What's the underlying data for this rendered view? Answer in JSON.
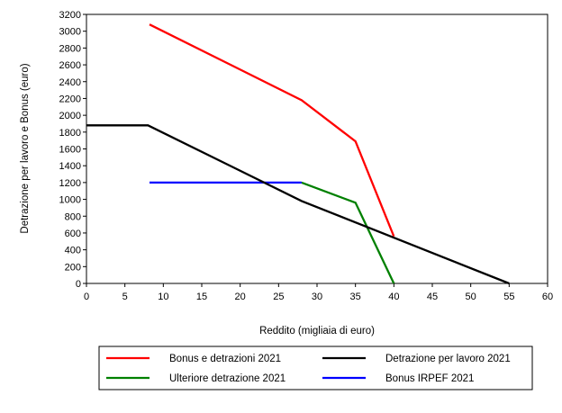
{
  "chart_data": {
    "type": "line",
    "xlabel": "Reddito (migliaia di euro)",
    "ylabel": "Detrazione per lavoro e Bonus (euro)",
    "xlim": [
      0,
      60
    ],
    "ylim": [
      0,
      3200
    ],
    "xticks": [
      0,
      5,
      10,
      15,
      20,
      25,
      30,
      35,
      40,
      45,
      50,
      55,
      60
    ],
    "yticks": [
      0,
      200,
      400,
      600,
      800,
      1000,
      1200,
      1400,
      1600,
      1800,
      2000,
      2200,
      2400,
      2600,
      2800,
      3000,
      3200
    ],
    "grid": false,
    "legend_position": "bottom",
    "series": [
      {
        "name": "Bonus e detrazioni 2021",
        "color": "#ff0000",
        "points": [
          [
            8.2,
            3080
          ],
          [
            28,
            2180
          ],
          [
            35,
            1690
          ],
          [
            40,
            560
          ]
        ]
      },
      {
        "name": "Detrazione per lavoro 2021",
        "color": "#000000",
        "points": [
          [
            0,
            1880
          ],
          [
            8,
            1880
          ],
          [
            28,
            980
          ],
          [
            55,
            0
          ]
        ]
      },
      {
        "name": "Ulteriore detrazione 2021",
        "color": "#008000",
        "points": [
          [
            28,
            1200
          ],
          [
            35,
            960
          ],
          [
            40,
            0
          ]
        ]
      },
      {
        "name": "Bonus IRPEF 2021",
        "color": "#0000ff",
        "points": [
          [
            8.2,
            1200
          ],
          [
            28,
            1200
          ]
        ]
      }
    ]
  }
}
